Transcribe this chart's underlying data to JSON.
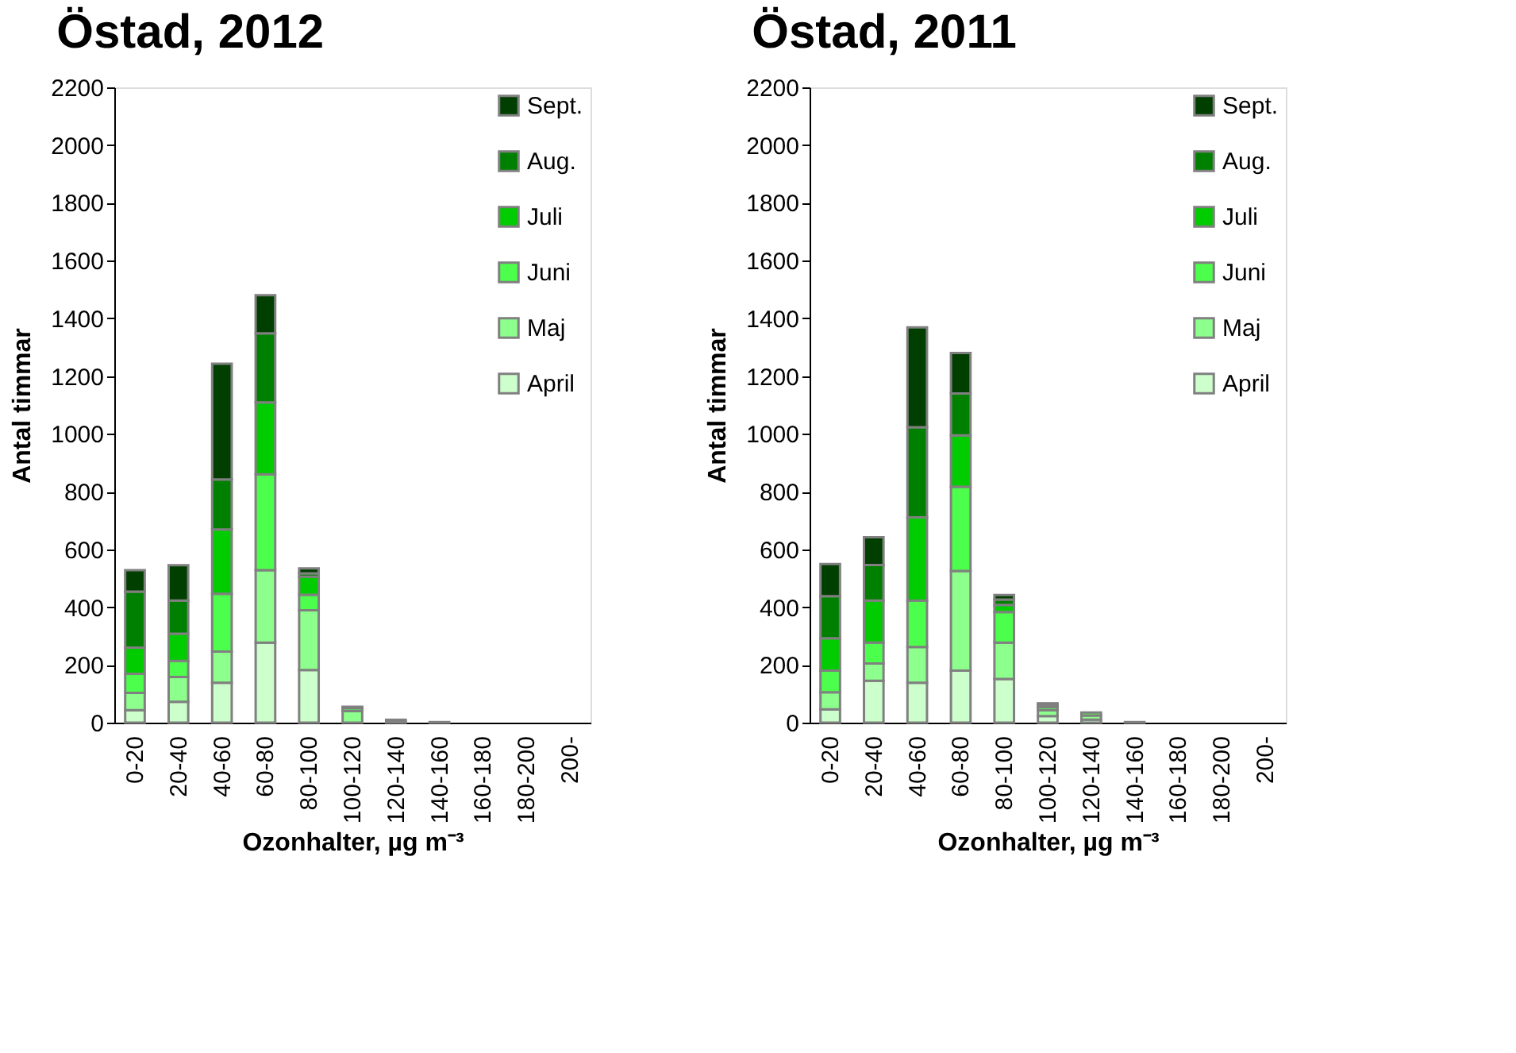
{
  "chart_data": [
    {
      "type": "bar",
      "title": "Östad, 2012",
      "xlabel": "Ozonhalter, µg m⁻³",
      "ylabel": "Antal timmar",
      "stacked": true,
      "legend": "top right",
      "grid": false,
      "categories": [
        "0-20",
        "20-40",
        "40-60",
        "60-80",
        "80-100",
        "100-120",
        "120-140",
        "140-160",
        "160-180",
        "180-200",
        "200-"
      ],
      "ylim": [
        0,
        2200
      ],
      "yticks": [
        0,
        200,
        400,
        600,
        800,
        1000,
        1200,
        1400,
        1600,
        1800,
        2000,
        2200
      ],
      "series": [
        {
          "name": "April",
          "color": "#ccffcc",
          "values": [
            43,
            72,
            138,
            277,
            182,
            0,
            0,
            0,
            0,
            0,
            0
          ]
        },
        {
          "name": "Maj",
          "color": "#8cff8c",
          "values": [
            60,
            86,
            108,
            251,
            207,
            40,
            5,
            null,
            0,
            0,
            0
          ]
        },
        {
          "name": "Juni",
          "color": "#4cff4c",
          "values": [
            66,
            56,
            200,
            332,
            54,
            10,
            5,
            2,
            0,
            0,
            0
          ]
        },
        {
          "name": "Juli",
          "color": "#00cc00",
          "values": [
            91,
            94,
            223,
            249,
            62,
            3,
            0,
            0,
            0,
            0,
            0
          ]
        },
        {
          "name": "Aug.",
          "color": "#008000",
          "values": [
            194,
            115,
            173,
            239,
            12,
            2,
            0,
            0,
            0,
            0,
            0
          ]
        },
        {
          "name": "Sept.",
          "color": "#003f00",
          "values": [
            74,
            122,
            401,
            132,
            17,
            0,
            0,
            0,
            0,
            0,
            0
          ]
        }
      ]
    },
    {
      "type": "bar",
      "title": "Östad, 2011",
      "xlabel": "Ozonhalter, µg m⁻³",
      "ylabel": "Antal timmar",
      "stacked": true,
      "legend": "top right",
      "grid": false,
      "categories": [
        "0-20",
        "20-40",
        "40-60",
        "60-80",
        "80-100",
        "100-120",
        "120-140",
        "140-160",
        "160-180",
        "180-200",
        "200-"
      ],
      "ylim": [
        0,
        2200
      ],
      "yticks": [
        0,
        200,
        400,
        600,
        800,
        1000,
        1200,
        1400,
        1600,
        1800,
        2000,
        2200
      ],
      "series": [
        {
          "name": "April",
          "color": "#ccffcc",
          "values": [
            46,
            145,
            138,
            180,
            151,
            23,
            10,
            0,
            0,
            0,
            0
          ]
        },
        {
          "name": "Maj",
          "color": "#8cff8c",
          "values": [
            59,
            60,
            124,
            345,
            126,
            20,
            15,
            null,
            0,
            0,
            0
          ]
        },
        {
          "name": "Juni",
          "color": "#4cff4c",
          "values": [
            75,
            72,
            161,
            292,
            106,
            11,
            10,
            2,
            0,
            0,
            0
          ]
        },
        {
          "name": "Juli",
          "color": "#00cc00",
          "values": [
            112,
            146,
            288,
            178,
            25,
            null,
            0,
            0,
            0,
            0,
            0
          ]
        },
        {
          "name": "Aug.",
          "color": "#008000",
          "values": [
            146,
            123,
            312,
            145,
            18,
            8,
            0,
            0,
            0,
            0,
            0
          ]
        },
        {
          "name": "Sept.",
          "color": "#003f00",
          "values": [
            111,
            96,
            346,
            140,
            16,
            5,
            0,
            0,
            0,
            0,
            0
          ]
        }
      ]
    }
  ]
}
